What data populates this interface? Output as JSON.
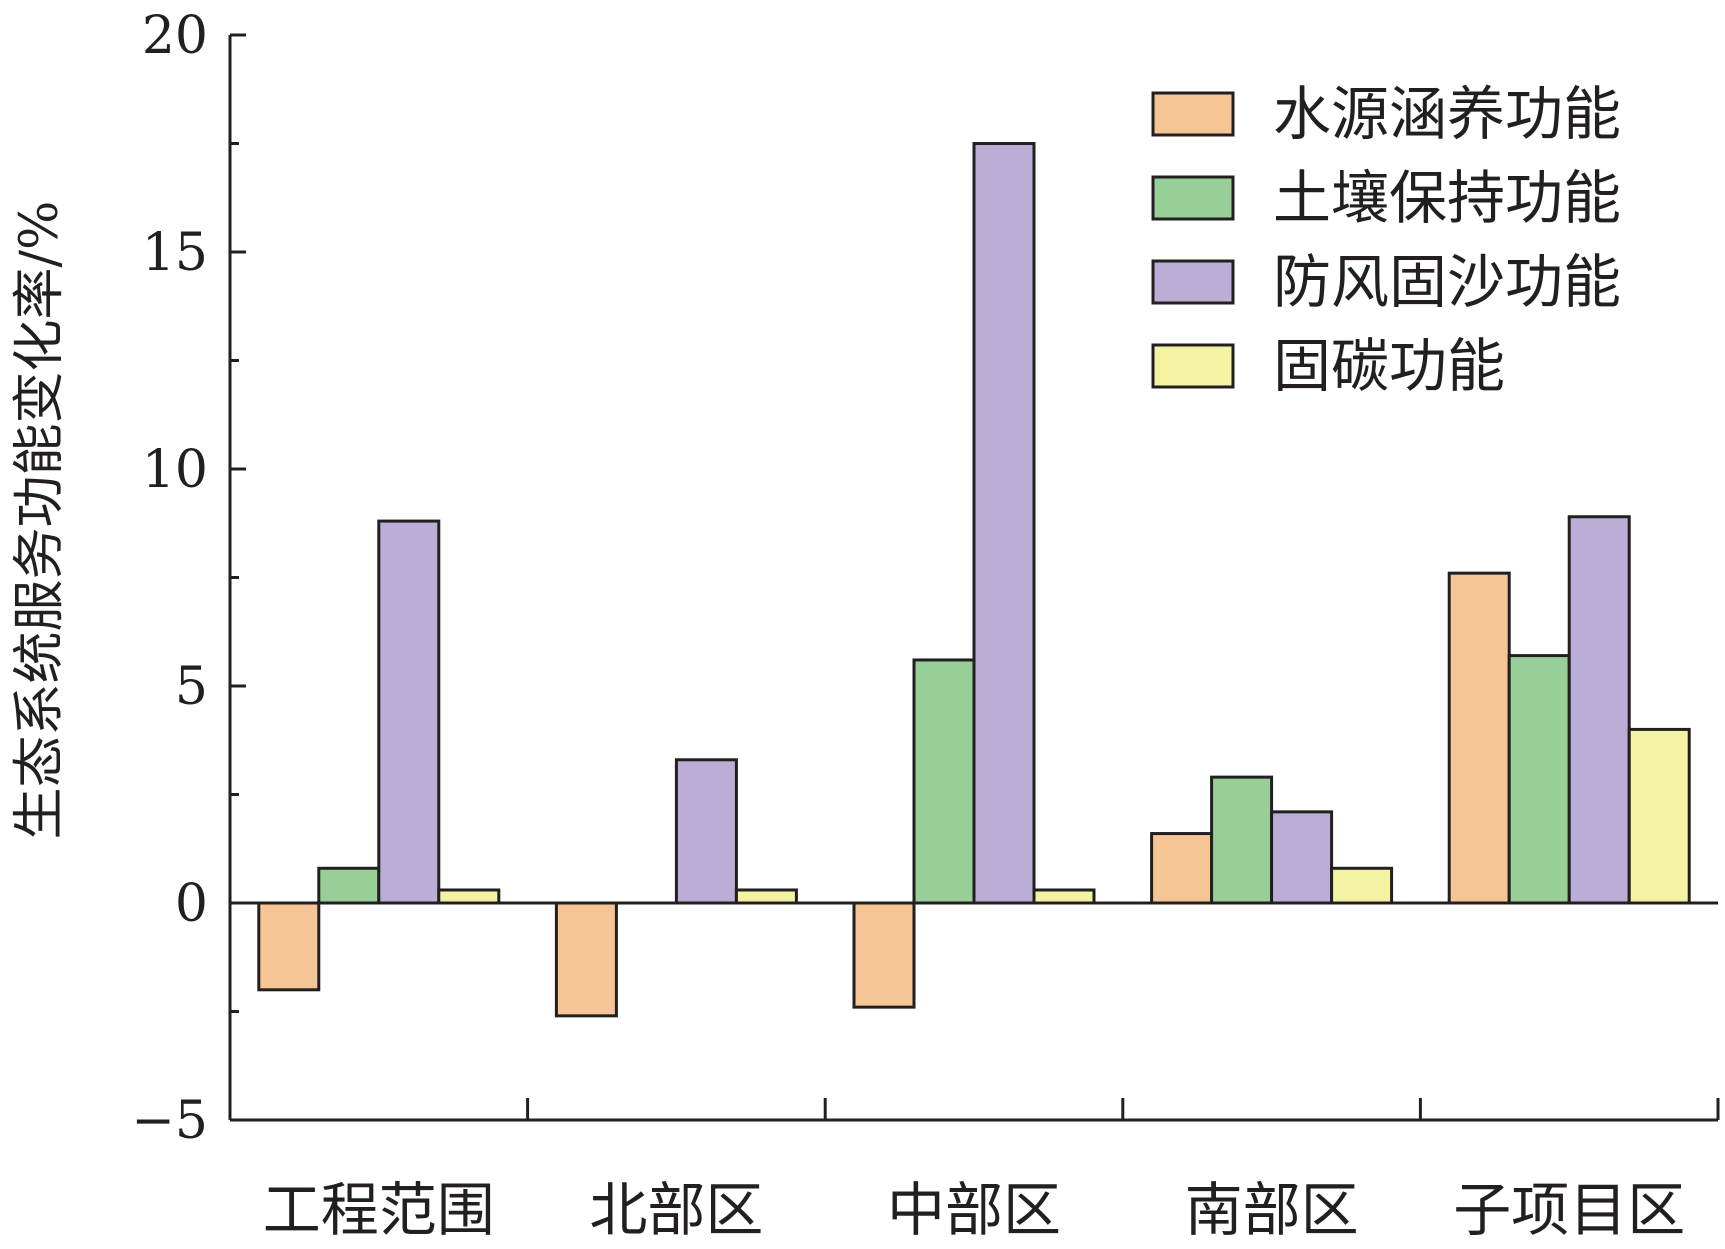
{
  "chart_data": {
    "type": "bar",
    "ylabel": "生态系统服务功能变化率/%",
    "xlabel": "",
    "ylim": [
      -5,
      20
    ],
    "yticks": [
      -5,
      0,
      5,
      10,
      15,
      20
    ],
    "ytick_labels": [
      "−5",
      "0",
      "5",
      "10",
      "15",
      "20"
    ],
    "categories": [
      "工程范围",
      "北部区",
      "中部区",
      "南部区",
      "子项目区"
    ],
    "legend_position": "top-right",
    "grid": false,
    "series": [
      {
        "name": "水源涵养功能",
        "color": "#f5c595",
        "values": [
          -2.0,
          -2.6,
          -2.4,
          1.6,
          7.6
        ]
      },
      {
        "name": "土壤保持功能",
        "color": "#98cf98",
        "values": [
          0.8,
          0.0,
          5.6,
          2.9,
          5.7
        ]
      },
      {
        "name": "防风固沙功能",
        "color": "#bbaed6",
        "values": [
          8.8,
          3.3,
          17.5,
          2.1,
          8.9
        ]
      },
      {
        "name": "固碳功能",
        "color": "#f4f3a4",
        "values": [
          0.3,
          0.3,
          0.3,
          0.8,
          4.0
        ]
      }
    ]
  }
}
